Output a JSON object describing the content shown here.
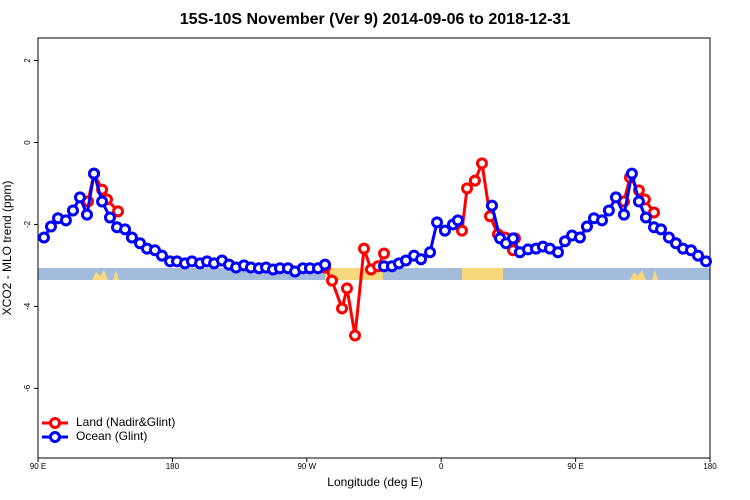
{
  "chart_data": {
    "type": "line",
    "title": "15S-10S November (Ver 9)   2014-09-06 to 2018-12-31",
    "x_label": "Longitude (deg E)",
    "y_label": "XCO2 - MLO trend (ppm)",
    "xlim": [
      90,
      540
    ],
    "ylim": [
      -7.7,
      2.55
    ],
    "xticks": [
      {
        "value": 90,
        "label": "90 E"
      },
      {
        "value": 180,
        "label": "180"
      },
      {
        "value": 270,
        "label": "90 W"
      },
      {
        "value": 360,
        "label": "0"
      },
      {
        "value": 450,
        "label": "90 E"
      },
      {
        "value": 540,
        "label": "180"
      }
    ],
    "yticks": [
      2,
      0,
      -2,
      -4,
      -6
    ],
    "legend": "bottom-left",
    "series": [
      {
        "name": "Land (Nadir&Glint)",
        "color": "#ff0000",
        "x": [
          123.5,
          127.5,
          132.9,
          136.2,
          143.6,
          null,
          282.2,
          286.9,
          293.6,
          296.9,
          302.3,
          308.3,
          313.0,
          317.7,
          321.7,
          null,
          373.9,
          377.3,
          382.6,
          387.3,
          392.7,
          398.0,
          402.7,
          408.1,
          409.4,
          null,
          482.4,
          486.4,
          492.4,
          496.4,
          502.5
        ],
        "values": [
          -1.44,
          -0.76,
          -1.15,
          -1.39,
          -1.68,
          null,
          -3.05,
          -3.37,
          -4.05,
          -3.56,
          -4.71,
          -2.59,
          -3.1,
          -3.02,
          -2.71,
          null,
          -2.15,
          -1.12,
          -0.93,
          -0.51,
          -1.8,
          -2.24,
          -2.32,
          -2.63,
          -2.34,
          null,
          -1.44,
          -0.85,
          -1.17,
          -1.39,
          -1.71
        ]
      },
      {
        "name": "Ocean (Glint)",
        "color": "#0000ff",
        "x": [
          94.0,
          98.7,
          103.4,
          108.7,
          113.4,
          118.1,
          122.8,
          127.5,
          132.9,
          138.2,
          142.9,
          148.3,
          152.9,
          158.3,
          163.0,
          168.3,
          173.0,
          178.4,
          183.1,
          188.4,
          193.1,
          198.5,
          203.2,
          207.9,
          213.2,
          217.9,
          222.6,
          227.9,
          232.6,
          238.0,
          242.7,
          247.4,
          252.0,
          257.4,
          262.1,
          267.4,
          272.1,
          277.5,
          282.2,
          null,
          321.7,
          327.0,
          331.7,
          336.4,
          341.8,
          346.5,
          352.5,
          357.2,
          362.5,
          367.9,
          371.2,
          null,
          394.0,
          399.4,
          403.4,
          408.1,
          412.7,
          418.1,
          423.5,
          428.1,
          432.8,
          438.2,
          442.9,
          447.6,
          452.9,
          457.6,
          462.3,
          467.7,
          472.3,
          477.0,
          482.4,
          487.7,
          492.4,
          497.1,
          502.5,
          507.2,
          512.5,
          517.2,
          521.9,
          527.3,
          532.0,
          537.3
        ],
        "values": [
          -2.32,
          -2.05,
          -1.85,
          -1.9,
          -1.66,
          -1.34,
          -1.76,
          -0.76,
          -1.44,
          -1.83,
          -2.07,
          -2.12,
          -2.32,
          -2.46,
          -2.59,
          -2.63,
          -2.76,
          -2.9,
          -2.9,
          -2.95,
          -2.9,
          -2.95,
          -2.9,
          -2.95,
          -2.88,
          -2.98,
          -3.05,
          -3.0,
          -3.05,
          -3.07,
          -3.05,
          -3.1,
          -3.07,
          -3.07,
          -3.15,
          -3.07,
          -3.07,
          -3.07,
          -2.98,
          null,
          -3.02,
          -3.02,
          -2.95,
          -2.88,
          -2.76,
          -2.85,
          -2.68,
          -1.95,
          -2.15,
          -2.0,
          -1.9,
          null,
          -1.54,
          -2.34,
          -2.46,
          -2.34,
          -2.68,
          -2.61,
          -2.59,
          -2.54,
          -2.59,
          -2.68,
          -2.41,
          -2.27,
          -2.32,
          -2.05,
          -1.85,
          -1.9,
          -1.66,
          -1.34,
          -1.76,
          -0.76,
          -1.44,
          -1.83,
          -2.07,
          -2.12,
          -2.32,
          -2.46,
          -2.59,
          -2.63,
          -2.76,
          -2.9
        ]
      }
    ]
  }
}
